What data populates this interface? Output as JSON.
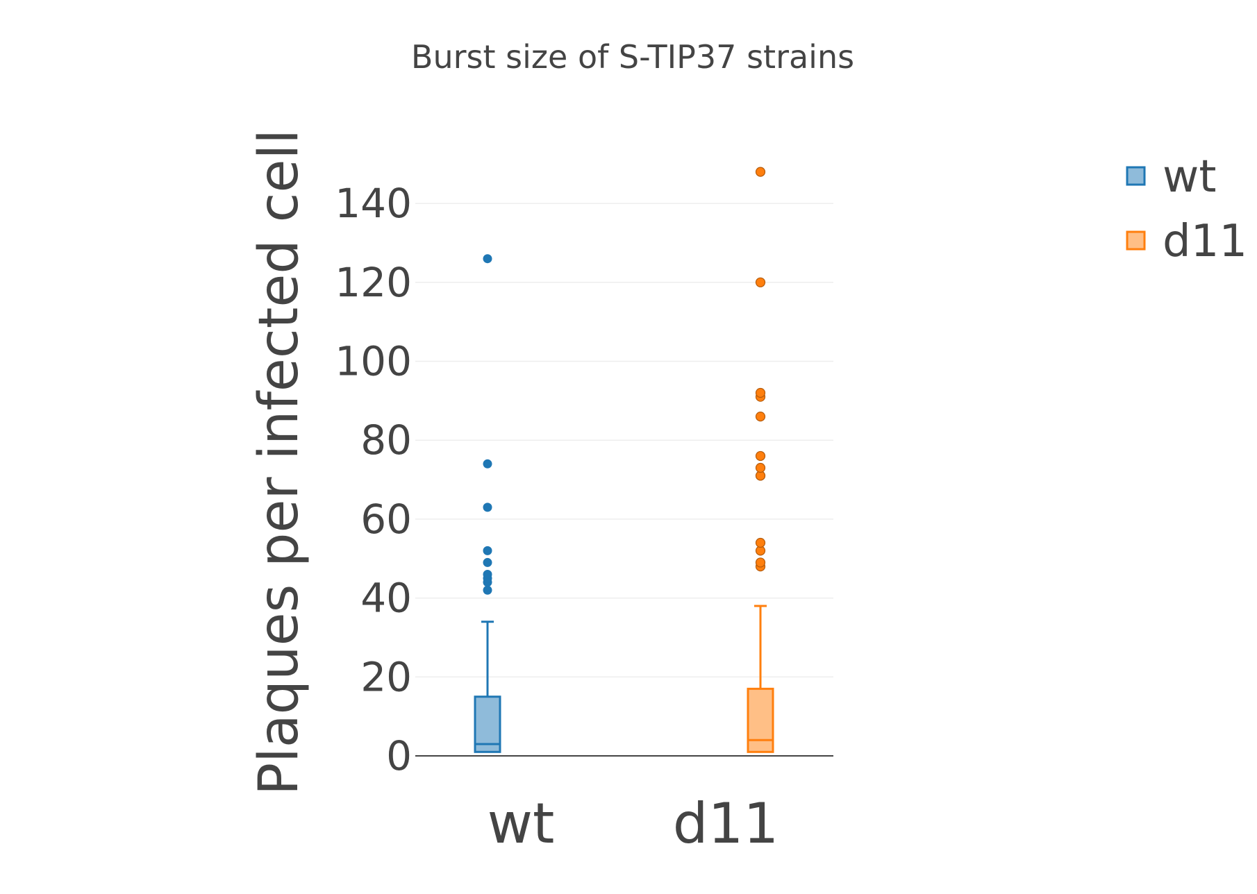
{
  "chart_data": {
    "type": "box",
    "title": "Burst size of S-TIP37 strains",
    "xlabel": "",
    "ylabel": "Plaques per infected cell",
    "ylim": [
      0,
      150
    ],
    "yticks": [
      0,
      20,
      40,
      60,
      80,
      100,
      120,
      140
    ],
    "grid": true,
    "legend_position": "top-right",
    "categories": [
      "wt",
      "d11"
    ],
    "series": [
      {
        "name": "wt",
        "color": "#1f77b4",
        "fill": "#8fbbda",
        "box": {
          "lowerfence": 1,
          "q1": 1,
          "median": 3,
          "q3": 15,
          "upperfence": 34
        },
        "outliers": [
          42,
          44,
          45,
          46,
          49,
          52,
          63,
          74,
          126
        ]
      },
      {
        "name": "d11",
        "color": "#ff7f0e",
        "fill": "#ffbf86",
        "box": {
          "lowerfence": 1,
          "q1": 1,
          "median": 4,
          "q3": 17,
          "upperfence": 38
        },
        "outliers": [
          48,
          49,
          52,
          54,
          71,
          71,
          73,
          76,
          86,
          91,
          92,
          120,
          148
        ]
      }
    ]
  }
}
